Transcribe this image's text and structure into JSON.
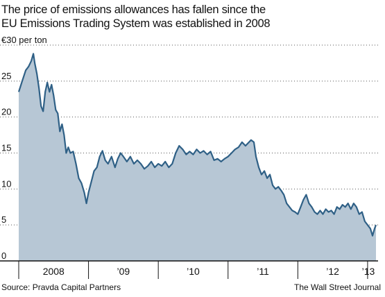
{
  "title_lines": [
    "The price of emissions allowances has fallen since the",
    "EU Emissions Trading System was established in 2008"
  ],
  "footer": {
    "source": "Source: Pravda Capital Partners",
    "credit": "The Wall Street Journal"
  },
  "colors": {
    "line": "#2f6086",
    "fill": "#b7c7d5",
    "grid": "#555555",
    "axis": "#111111"
  },
  "chart_data": {
    "type": "area",
    "title": "The price of emissions allowances has fallen since the EU Emissions Trading System was established in 2008",
    "ylabel": "",
    "ylim": [
      0,
      30
    ],
    "xlim": [
      2008.0,
      2013.15
    ],
    "y_ticks": [
      {
        "value": 30,
        "label": "€30 per ton"
      },
      {
        "value": 25,
        "label": "25"
      },
      {
        "value": 20,
        "label": "20"
      },
      {
        "value": 15,
        "label": "15"
      },
      {
        "value": 10,
        "label": "10"
      },
      {
        "value": 5,
        "label": "5"
      },
      {
        "value": 0,
        "label": "0"
      }
    ],
    "x_tick_positions": [
      2008.0,
      2009.0,
      2010.0,
      2011.0,
      2012.0,
      2013.0
    ],
    "x_labels": [
      {
        "label": "2008",
        "at": 2008.5
      },
      {
        "label": "’09",
        "at": 2009.5
      },
      {
        "label": "’10",
        "at": 2010.5
      },
      {
        "label": "’11",
        "at": 2011.5
      },
      {
        "label": "’12",
        "at": 2012.5
      },
      {
        "label": "’13",
        "at": 2013.09
      }
    ],
    "grid": "horizontal dotted",
    "series": [
      {
        "points": [
          [
            2008.0,
            23.5
          ],
          [
            2008.05,
            25.0
          ],
          [
            2008.1,
            26.5
          ],
          [
            2008.14,
            27.0
          ],
          [
            2008.18,
            27.8
          ],
          [
            2008.21,
            28.8
          ],
          [
            2008.23,
            27.5
          ],
          [
            2008.26,
            26.0
          ],
          [
            2008.29,
            24.0
          ],
          [
            2008.32,
            21.5
          ],
          [
            2008.35,
            20.8
          ],
          [
            2008.38,
            23.5
          ],
          [
            2008.41,
            24.8
          ],
          [
            2008.44,
            23.5
          ],
          [
            2008.47,
            24.5
          ],
          [
            2008.5,
            23.0
          ],
          [
            2008.53,
            21.0
          ],
          [
            2008.56,
            20.5
          ],
          [
            2008.59,
            18.0
          ],
          [
            2008.62,
            19.0
          ],
          [
            2008.65,
            17.5
          ],
          [
            2008.68,
            15.0
          ],
          [
            2008.71,
            15.8
          ],
          [
            2008.74,
            15.0
          ],
          [
            2008.78,
            15.2
          ],
          [
            2008.82,
            13.5
          ],
          [
            2008.86,
            11.5
          ],
          [
            2008.9,
            10.8
          ],
          [
            2008.94,
            9.5
          ],
          [
            2008.97,
            8.0
          ],
          [
            2009.0,
            9.5
          ],
          [
            2009.04,
            11.0
          ],
          [
            2009.08,
            12.5
          ],
          [
            2009.12,
            13.0
          ],
          [
            2009.16,
            14.5
          ],
          [
            2009.2,
            15.3
          ],
          [
            2009.24,
            14.0
          ],
          [
            2009.28,
            13.5
          ],
          [
            2009.33,
            14.5
          ],
          [
            2009.38,
            13.0
          ],
          [
            2009.42,
            14.2
          ],
          [
            2009.46,
            15.0
          ],
          [
            2009.5,
            14.5
          ],
          [
            2009.55,
            13.8
          ],
          [
            2009.6,
            14.5
          ],
          [
            2009.65,
            13.5
          ],
          [
            2009.7,
            14.0
          ],
          [
            2009.75,
            13.5
          ],
          [
            2009.8,
            12.8
          ],
          [
            2009.85,
            13.2
          ],
          [
            2009.9,
            13.8
          ],
          [
            2009.95,
            13.0
          ],
          [
            2010.0,
            13.5
          ],
          [
            2010.05,
            13.2
          ],
          [
            2010.1,
            13.8
          ],
          [
            2010.15,
            13.0
          ],
          [
            2010.2,
            13.5
          ],
          [
            2010.25,
            15.0
          ],
          [
            2010.3,
            16.0
          ],
          [
            2010.35,
            15.5
          ],
          [
            2010.4,
            14.8
          ],
          [
            2010.45,
            15.2
          ],
          [
            2010.5,
            14.8
          ],
          [
            2010.55,
            15.5
          ],
          [
            2010.6,
            15.0
          ],
          [
            2010.65,
            15.3
          ],
          [
            2010.7,
            14.8
          ],
          [
            2010.75,
            15.2
          ],
          [
            2010.8,
            14.0
          ],
          [
            2010.85,
            14.2
          ],
          [
            2010.9,
            13.8
          ],
          [
            2010.95,
            14.2
          ],
          [
            2011.0,
            14.5
          ],
          [
            2011.05,
            15.0
          ],
          [
            2011.1,
            15.5
          ],
          [
            2011.15,
            15.8
          ],
          [
            2011.2,
            16.5
          ],
          [
            2011.25,
            16.0
          ],
          [
            2011.3,
            16.5
          ],
          [
            2011.33,
            16.8
          ],
          [
            2011.37,
            16.5
          ],
          [
            2011.4,
            14.5
          ],
          [
            2011.44,
            13.0
          ],
          [
            2011.48,
            12.0
          ],
          [
            2011.52,
            12.5
          ],
          [
            2011.56,
            11.5
          ],
          [
            2011.6,
            12.0
          ],
          [
            2011.64,
            10.5
          ],
          [
            2011.68,
            10.0
          ],
          [
            2011.72,
            10.3
          ],
          [
            2011.76,
            9.8
          ],
          [
            2011.8,
            9.2
          ],
          [
            2011.84,
            8.0
          ],
          [
            2011.88,
            7.5
          ],
          [
            2011.92,
            7.0
          ],
          [
            2011.96,
            6.8
          ],
          [
            2012.0,
            6.5
          ],
          [
            2012.04,
            7.5
          ],
          [
            2012.08,
            8.5
          ],
          [
            2012.12,
            9.2
          ],
          [
            2012.16,
            8.0
          ],
          [
            2012.2,
            7.5
          ],
          [
            2012.24,
            6.8
          ],
          [
            2012.28,
            6.5
          ],
          [
            2012.32,
            7.0
          ],
          [
            2012.36,
            6.5
          ],
          [
            2012.4,
            7.2
          ],
          [
            2012.44,
            6.8
          ],
          [
            2012.48,
            7.0
          ],
          [
            2012.52,
            6.5
          ],
          [
            2012.56,
            7.5
          ],
          [
            2012.6,
            7.2
          ],
          [
            2012.64,
            7.8
          ],
          [
            2012.68,
            7.5
          ],
          [
            2012.72,
            8.0
          ],
          [
            2012.76,
            7.2
          ],
          [
            2012.8,
            8.0
          ],
          [
            2012.84,
            7.5
          ],
          [
            2012.88,
            6.5
          ],
          [
            2012.92,
            6.8
          ],
          [
            2012.96,
            5.5
          ],
          [
            2013.0,
            5.0
          ],
          [
            2013.04,
            4.5
          ],
          [
            2013.07,
            3.5
          ],
          [
            2013.1,
            4.5
          ],
          [
            2013.12,
            5.0
          ]
        ]
      }
    ]
  }
}
